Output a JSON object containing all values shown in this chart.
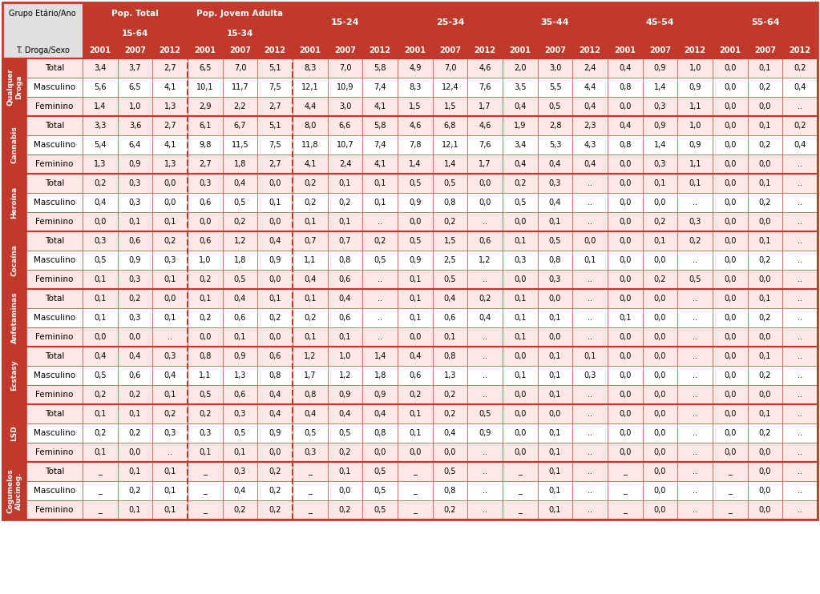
{
  "col_group_labels": [
    "Pop. Total\n15-64",
    "Pop. Jovem Adulta\n15-34",
    "15-24",
    "25-34",
    "35-44",
    "45-54",
    "55-64"
  ],
  "header_years": [
    "2001",
    "2007",
    "2012"
  ],
  "drug_groups": [
    {
      "label": "Qualquer\nDroga",
      "rows": [
        {
          "sex": "Total",
          "vals": [
            "3,4",
            "3,7",
            "2,7",
            "6,5",
            "7,0",
            "5,1",
            "8,3",
            "7,0",
            "5,8",
            "4,9",
            "7,0",
            "4,6",
            "2,0",
            "3,0",
            "2,4",
            "0,4",
            "0,9",
            "1,0",
            "0,0",
            "0,1",
            "0,2"
          ]
        },
        {
          "sex": "Masculino",
          "vals": [
            "5,6",
            "6,5",
            "4,1",
            "10,1",
            "11,7",
            "7,5",
            "12,1",
            "10,9",
            "7,4",
            "8,3",
            "12,4",
            "7,6",
            "3,5",
            "5,5",
            "4,4",
            "0,8",
            "1,4",
            "0,9",
            "0,0",
            "0,2",
            "0,4"
          ]
        },
        {
          "sex": "Feminino",
          "vals": [
            "1,4",
            "1,0",
            "1,3",
            "2,9",
            "2,2",
            "2,7",
            "4,4",
            "3,0",
            "4,1",
            "1,5",
            "1,5",
            "1,7",
            "0,4",
            "0,5",
            "0,4",
            "0,0",
            "0,3",
            "1,1",
            "0,0",
            "0,0",
            ".."
          ]
        }
      ]
    },
    {
      "label": "Cannabis",
      "rows": [
        {
          "sex": "Total",
          "vals": [
            "3,3",
            "3,6",
            "2,7",
            "6,1",
            "6,7",
            "5,1",
            "8,0",
            "6,6",
            "5,8",
            "4,6",
            "6,8",
            "4,6",
            "1,9",
            "2,8",
            "2,3",
            "0,4",
            "0,9",
            "1,0",
            "0,0",
            "0,1",
            "0,2"
          ]
        },
        {
          "sex": "Masculino",
          "vals": [
            "5,4",
            "6,4",
            "4,1",
            "9,8",
            "11,5",
            "7,5",
            "11,8",
            "10,7",
            "7,4",
            "7,8",
            "12,1",
            "7,6",
            "3,4",
            "5,3",
            "4,3",
            "0,8",
            "1,4",
            "0,9",
            "0,0",
            "0,2",
            "0,4"
          ]
        },
        {
          "sex": "Feminino",
          "vals": [
            "1,3",
            "0,9",
            "1,3",
            "2,7",
            "1,8",
            "2,7",
            "4,1",
            "2,4",
            "4,1",
            "1,4",
            "1,4",
            "1,7",
            "0,4",
            "0,4",
            "0,4",
            "0,0",
            "0,3",
            "1,1",
            "0,0",
            "0,0",
            ".."
          ]
        }
      ]
    },
    {
      "label": "Heroína",
      "rows": [
        {
          "sex": "Total",
          "vals": [
            "0,2",
            "0,3",
            "0,0",
            "0,3",
            "0,4",
            "0,0",
            "0,2",
            "0,1",
            "0,1",
            "0,5",
            "0,5",
            "0,0",
            "0,2",
            "0,3",
            "..",
            "0,0",
            "0,1",
            "0,1",
            "0,0",
            "0,1",
            ".."
          ]
        },
        {
          "sex": "Masculino",
          "vals": [
            "0,4",
            "0,3",
            "0,0",
            "0,6",
            "0,5",
            "0,1",
            "0,2",
            "0,2",
            "0,1",
            "0,9",
            "0,8",
            "0,0",
            "0,5",
            "0,4",
            "..",
            "0,0",
            "0,0",
            "..",
            "0,0",
            "0,2",
            ".."
          ]
        },
        {
          "sex": "Feminino",
          "vals": [
            "0,0",
            "0,1",
            "0,1",
            "0,0",
            "0,2",
            "0,0",
            "0,1",
            "0,1",
            "..",
            "0,0",
            "0,2",
            "..",
            "0,0",
            "0,1",
            "..",
            "0,0",
            "0,2",
            "0,3",
            "0,0",
            "0,0",
            ".."
          ]
        }
      ]
    },
    {
      "label": "Cocaína",
      "rows": [
        {
          "sex": "Total",
          "vals": [
            "0,3",
            "0,6",
            "0,2",
            "0,6",
            "1,2",
            "0,4",
            "0,7",
            "0,7",
            "0,2",
            "0,5",
            "1,5",
            "0,6",
            "0,1",
            "0,5",
            "0,0",
            "0,0",
            "0,1",
            "0,2",
            "0,0",
            "0,1",
            ".."
          ]
        },
        {
          "sex": "Masculino",
          "vals": [
            "0,5",
            "0,9",
            "0,3",
            "1,0",
            "1,8",
            "0,9",
            "1,1",
            "0,8",
            "0,5",
            "0,9",
            "2,5",
            "1,2",
            "0,3",
            "0,8",
            "0,1",
            "0,0",
            "0,0",
            "..",
            "0,0",
            "0,2",
            ".."
          ]
        },
        {
          "sex": "Feminino",
          "vals": [
            "0,1",
            "0,3",
            "0,1",
            "0,2",
            "0,5",
            "0,0",
            "0,4",
            "0,6",
            "..",
            "0,1",
            "0,5",
            "..",
            "0,0",
            "0,3",
            "..",
            "0,0",
            "0,2",
            "0,5",
            "0,0",
            "0,0",
            ".."
          ]
        }
      ]
    },
    {
      "label": "Anfetaminas",
      "rows": [
        {
          "sex": "Total",
          "vals": [
            "0,1",
            "0,2",
            "0,0",
            "0,1",
            "0,4",
            "0,1",
            "0,1",
            "0,4",
            "..",
            "0,1",
            "0,4",
            "0,2",
            "0,1",
            "0,0",
            "..",
            "0,0",
            "0,0",
            "..",
            "0,0",
            "0,1",
            ".."
          ]
        },
        {
          "sex": "Masculino",
          "vals": [
            "0,1",
            "0,3",
            "0,1",
            "0,2",
            "0,6",
            "0,2",
            "0,2",
            "0,6",
            "..",
            "0,1",
            "0,6",
            "0,4",
            "0,1",
            "0,1",
            "..",
            "0,1",
            "0,0",
            "..",
            "0,0",
            "0,2",
            ".."
          ]
        },
        {
          "sex": "Feminino",
          "vals": [
            "0,0",
            "0,0",
            "..",
            "0,0",
            "0,1",
            "0,0",
            "0,1",
            "0,1",
            "..",
            "0,0",
            "0,1",
            "..",
            "0,1",
            "0,0",
            "..",
            "0,0",
            "0,0",
            "..",
            "0,0",
            "0,0",
            ".."
          ]
        }
      ]
    },
    {
      "label": "Ecstasy",
      "rows": [
        {
          "sex": "Total",
          "vals": [
            "0,4",
            "0,4",
            "0,3",
            "0,8",
            "0,9",
            "0,6",
            "1,2",
            "1,0",
            "1,4",
            "0,4",
            "0,8",
            "..",
            "0,0",
            "0,1",
            "0,1",
            "0,0",
            "0,0",
            "..",
            "0,0",
            "0,1",
            ".."
          ]
        },
        {
          "sex": "Masculino",
          "vals": [
            "0,5",
            "0,6",
            "0,4",
            "1,1",
            "1,3",
            "0,8",
            "1,7",
            "1,2",
            "1,8",
            "0,6",
            "1,3",
            "..",
            "0,1",
            "0,1",
            "0,3",
            "0,0",
            "0,0",
            "..",
            "0,0",
            "0,2",
            ".."
          ]
        },
        {
          "sex": "Feminino",
          "vals": [
            "0,2",
            "0,2",
            "0,1",
            "0,5",
            "0,6",
            "0,4",
            "0,8",
            "0,9",
            "0,9",
            "0,2",
            "0,2",
            "..",
            "0,0",
            "0,1",
            "..",
            "0,0",
            "0,0",
            "..",
            "0,0",
            "0,0",
            ".."
          ]
        }
      ]
    },
    {
      "label": "LSD",
      "rows": [
        {
          "sex": "Total",
          "vals": [
            "0,1",
            "0,1",
            "0,2",
            "0,2",
            "0,3",
            "0,4",
            "0,4",
            "0,4",
            "0,4",
            "0,1",
            "0,2",
            "0,5",
            "0,0",
            "0,0",
            "..",
            "0,0",
            "0,0",
            "..",
            "0,0",
            "0,1",
            ".."
          ]
        },
        {
          "sex": "Masculino",
          "vals": [
            "0,2",
            "0,2",
            "0,3",
            "0,3",
            "0,5",
            "0,9",
            "0,5",
            "0,5",
            "0,8",
            "0,1",
            "0,4",
            "0,9",
            "0,0",
            "0,1",
            "..",
            "0,0",
            "0,0",
            "..",
            "0,0",
            "0,2",
            ".."
          ]
        },
        {
          "sex": "Feminino",
          "vals": [
            "0,1",
            "0,0",
            "..",
            "0,1",
            "0,1",
            "0,0",
            "0,3",
            "0,2",
            "0,0",
            "0,0",
            "0,0",
            "..",
            "0,0",
            "0,1",
            "..",
            "0,0",
            "0,0",
            "..",
            "0,0",
            "0,0",
            ".."
          ]
        }
      ]
    },
    {
      "label": "Cogumelos\nAlucinog.",
      "rows": [
        {
          "sex": "Total",
          "vals": [
            "_",
            "0,1",
            "0,1",
            "_",
            "0,3",
            "0,2",
            "_",
            "0,1",
            "0,5",
            "_",
            "0,5",
            "..",
            "_",
            "0,1",
            "..",
            "_",
            "0,0",
            "..",
            "_",
            "0,0",
            ".."
          ]
        },
        {
          "sex": "Masculino",
          "vals": [
            "_",
            "0,2",
            "0,1",
            "_",
            "0,4",
            "0,2",
            "_",
            "0,0",
            "0,5",
            "_",
            "0,8",
            "..",
            "_",
            "0,1",
            "..",
            "_",
            "0,0",
            "..",
            "_",
            "0,0",
            ".."
          ]
        },
        {
          "sex": "Feminino",
          "vals": [
            "_",
            "0,1",
            "0,1",
            "_",
            "0,2",
            "0,2",
            "_",
            "0,2",
            "0,5",
            "_",
            "0,2",
            "..",
            "_",
            "0,1",
            "..",
            "_",
            "0,0",
            "..",
            "_",
            "0,0",
            ".."
          ]
        }
      ]
    }
  ],
  "color_red": "#c0392b",
  "color_white": "#ffffff",
  "color_light_pink": "#fde8e6",
  "color_header_gray": "#e0e0e0",
  "color_border": "#c0392b"
}
